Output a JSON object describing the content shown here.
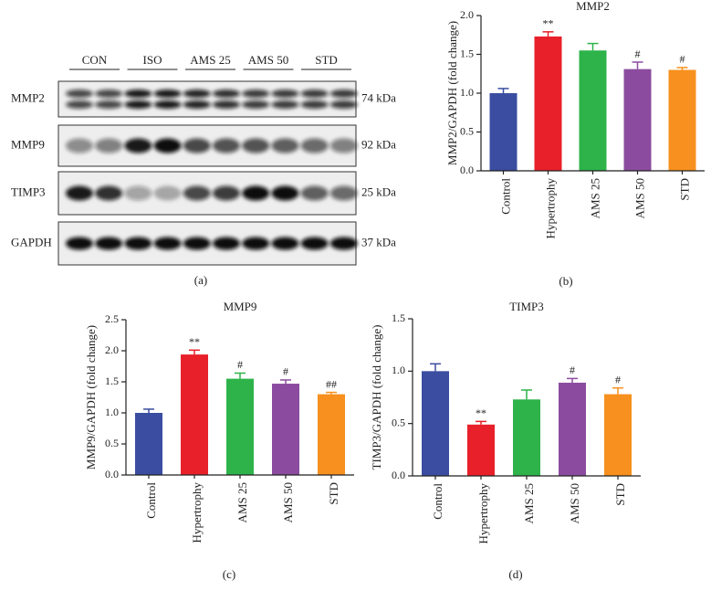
{
  "blot": {
    "groups": [
      "CON",
      "ISO",
      "AMS 25",
      "AMS 50",
      "STD"
    ],
    "rows": [
      {
        "name": "MMP2",
        "size": "74 kDa"
      },
      {
        "name": "MMP9",
        "size": "92 kDa"
      },
      {
        "name": "TIMP3",
        "size": "25 kDa"
      },
      {
        "name": "GAPDH",
        "size": "37 kDa"
      }
    ],
    "panel": "(a)"
  },
  "chart_data": [
    {
      "type": "bar",
      "title": "MMP2",
      "panel": "(b)",
      "y_label": "MMP2/GAPDH (fold change)",
      "categories": [
        "Control",
        "Hypertrophy",
        "AMS 25",
        "AMS 50",
        "STD"
      ],
      "values": [
        1.0,
        1.73,
        1.55,
        1.31,
        1.3
      ],
      "errors": [
        0.06,
        0.06,
        0.09,
        0.09,
        0.03
      ],
      "significance": [
        null,
        "**",
        null,
        "#",
        "#"
      ],
      "colors": [
        "#3a4da0",
        "#e8202a",
        "#2db34a",
        "#8b4c9f",
        "#f7901e"
      ],
      "ylim": [
        0,
        2
      ],
      "yticks": [
        {
          "value": 0,
          "label": "0.0"
        },
        0.5,
        {
          "value": 1,
          "label": "1.0"
        },
        1.5,
        {
          "value": 2,
          "label": "2.0"
        }
      ]
    },
    {
      "type": "bar",
      "title": "MMP9",
      "panel": "(c)",
      "y_label": "MMP9/GAPDH (fold change)",
      "categories": [
        "Control",
        "Hypertrophy",
        "AMS 25",
        "AMS 50",
        "STD"
      ],
      "values": [
        1.0,
        1.94,
        1.55,
        1.47,
        1.3
      ],
      "errors": [
        0.06,
        0.07,
        0.09,
        0.06,
        0.03
      ],
      "significance": [
        null,
        "**",
        "#",
        "#",
        "##"
      ],
      "colors": [
        "#3a4da0",
        "#e8202a",
        "#2db34a",
        "#8b4c9f",
        "#f7901e"
      ],
      "ylim": [
        0,
        2.5
      ],
      "yticks": [
        {
          "value": 0,
          "label": "0.0"
        },
        0.5,
        {
          "value": 1,
          "label": "1.0"
        },
        1.5,
        {
          "value": 2,
          "label": "2.0"
        },
        2.5
      ]
    },
    {
      "type": "bar",
      "title": "TIMP3",
      "panel": "(d)",
      "y_label": "TIMP3/GAPDH (fold change)",
      "categories": [
        "Control",
        "Hypertrophy",
        "AMS 25",
        "AMS 50",
        "STD"
      ],
      "values": [
        1.0,
        0.49,
        0.73,
        0.89,
        0.78
      ],
      "errors": [
        0.07,
        0.03,
        0.09,
        0.04,
        0.06
      ],
      "significance": [
        null,
        "**",
        null,
        "#",
        "#"
      ],
      "colors": [
        "#3a4da0",
        "#e8202a",
        "#2db34a",
        "#8b4c9f",
        "#f7901e"
      ],
      "ylim": [
        0,
        1.5
      ],
      "yticks": [
        {
          "value": 0,
          "label": "0.0"
        },
        0.5,
        {
          "value": 1,
          "label": "1.0"
        },
        1.5
      ]
    }
  ]
}
